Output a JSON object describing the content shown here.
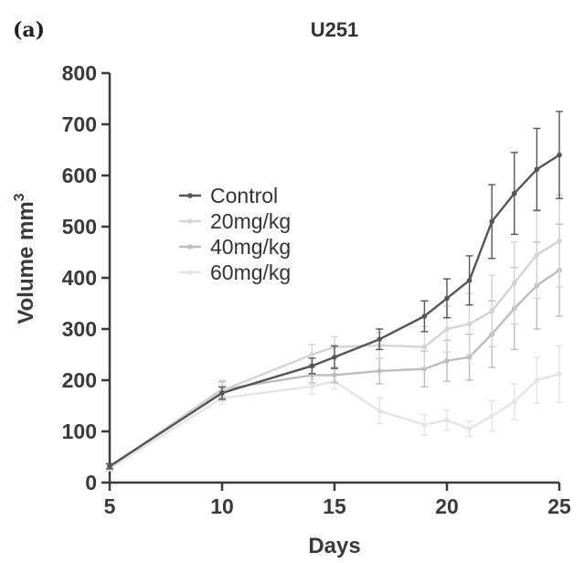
{
  "panel_label": "(a)",
  "chart_data": {
    "type": "line",
    "title": "U251",
    "xlabel": "Days",
    "ylabel": "Volume mm",
    "ylabel_superscript": "3",
    "xlim": [
      5,
      25
    ],
    "ylim": [
      0,
      800
    ],
    "xticks": [
      5,
      10,
      15,
      20,
      25
    ],
    "yticks": [
      0,
      100,
      200,
      300,
      400,
      500,
      600,
      700,
      800
    ],
    "grid": false,
    "legend_position": "center-left",
    "series": [
      {
        "name": "Control",
        "color": "#555555",
        "x": [
          5,
          10,
          14,
          15,
          17,
          19,
          20,
          21,
          22,
          23,
          24,
          25
        ],
        "y": [
          32,
          175,
          228,
          245,
          280,
          325,
          360,
          395,
          510,
          565,
          612,
          640
        ],
        "err": [
          5,
          12,
          15,
          22,
          20,
          30,
          38,
          48,
          72,
          80,
          80,
          85
        ]
      },
      {
        "name": "20mg/kg",
        "color": "#d4d4d4",
        "x": [
          5,
          10,
          14,
          15,
          17,
          19,
          20,
          21,
          22,
          23,
          24,
          25
        ],
        "y": [
          30,
          180,
          250,
          265,
          268,
          265,
          300,
          310,
          335,
          390,
          445,
          472
        ],
        "err": [
          5,
          20,
          20,
          20,
          25,
          40,
          45,
          60,
          70,
          80,
          85,
          90
        ]
      },
      {
        "name": "40mg/kg",
        "color": "#bdbdbd",
        "x": [
          5,
          10,
          14,
          15,
          17,
          19,
          20,
          21,
          22,
          23,
          24,
          25
        ],
        "y": [
          30,
          182,
          210,
          210,
          218,
          222,
          238,
          245,
          290,
          340,
          385,
          415
        ],
        "err": [
          5,
          15,
          15,
          15,
          25,
          35,
          40,
          45,
          65,
          80,
          85,
          90
        ]
      },
      {
        "name": "60mg/kg",
        "color": "#e4e4e4",
        "x": [
          5,
          10,
          14,
          15,
          17,
          19,
          20,
          21,
          22,
          23,
          24,
          25
        ],
        "y": [
          28,
          165,
          188,
          198,
          140,
          113,
          122,
          105,
          130,
          158,
          200,
          212
        ],
        "err": [
          5,
          12,
          15,
          15,
          25,
          20,
          20,
          15,
          30,
          35,
          45,
          55
        ]
      }
    ]
  }
}
